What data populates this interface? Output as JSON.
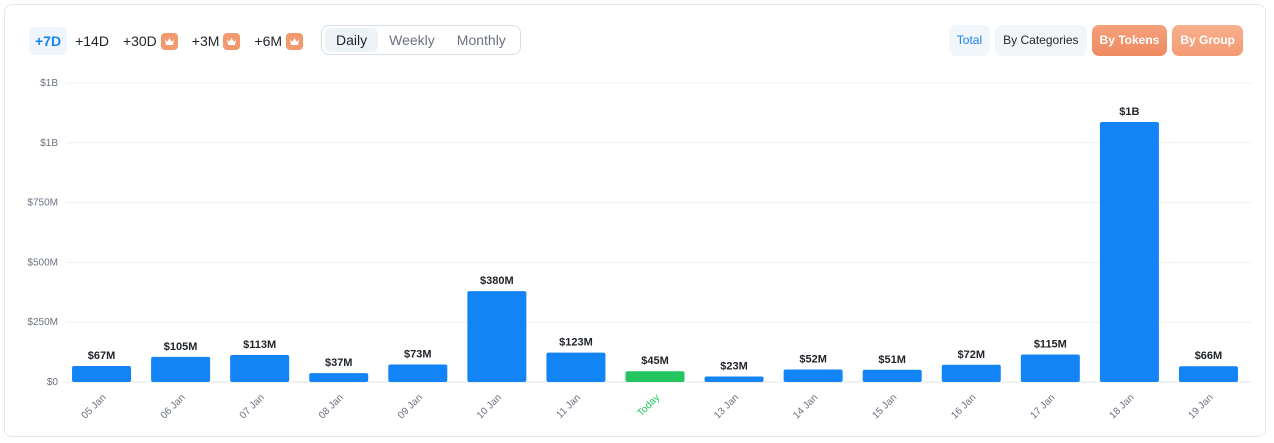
{
  "ranges": [
    {
      "label": "+7D",
      "active": true,
      "premium": false
    },
    {
      "label": "+14D",
      "active": false,
      "premium": false
    },
    {
      "label": "+30D",
      "active": false,
      "premium": true
    },
    {
      "label": "+3M",
      "active": false,
      "premium": true
    },
    {
      "label": "+6M",
      "active": false,
      "premium": true
    }
  ],
  "intervals": [
    {
      "label": "Daily",
      "active": true
    },
    {
      "label": "Weekly",
      "active": false
    },
    {
      "label": "Monthly",
      "active": false
    }
  ],
  "views": [
    {
      "label": "Total",
      "style": "total"
    },
    {
      "label": "By Categories",
      "style": "plain"
    },
    {
      "label": "By Tokens",
      "style": "premium"
    },
    {
      "label": "By Group",
      "style": "premium-light"
    }
  ],
  "colors": {
    "bar": "#1384f5",
    "today_bar": "#22c55e",
    "today_label": "#22c55e",
    "accent": "#1a84ee",
    "premium": "#f2996e"
  },
  "chart_data": {
    "type": "bar",
    "categories": [
      "05 Jan",
      "06 Jan",
      "07 Jan",
      "08 Jan",
      "09 Jan",
      "10 Jan",
      "11 Jan",
      "Today",
      "13 Jan",
      "14 Jan",
      "15 Jan",
      "16 Jan",
      "17 Jan",
      "18 Jan",
      "19 Jan"
    ],
    "values": [
      67,
      105,
      113,
      37,
      73,
      380,
      123,
      45,
      23,
      52,
      51,
      72,
      115,
      1087,
      66
    ],
    "value_labels": [
      "$67M",
      "$105M",
      "$113M",
      "$37M",
      "$73M",
      "$380M",
      "$123M",
      "$45M",
      "$23M",
      "$52M",
      "$51M",
      "$72M",
      "$115M",
      "$1B",
      "$66M"
    ],
    "highlight_index": 7,
    "unit": "M",
    "yticks": [
      0,
      250,
      500,
      750,
      1000,
      1250
    ],
    "ytick_labels": [
      "$0",
      "$250M",
      "$500M",
      "$750M",
      "$1B",
      "$1B"
    ],
    "ylim": [
      0,
      1250
    ],
    "grid": true,
    "x_label_rotation": "diagonal"
  }
}
